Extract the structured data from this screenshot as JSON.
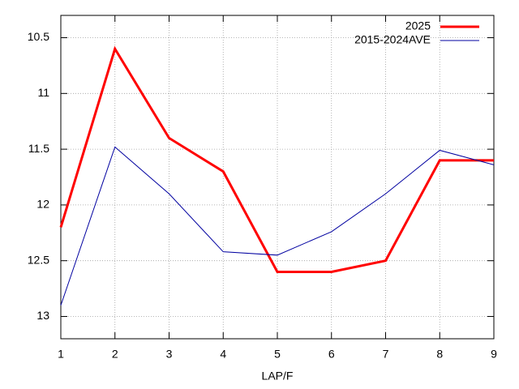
{
  "chart_data": {
    "type": "line",
    "xlabel": "LAP/F",
    "x": [
      1,
      2,
      3,
      4,
      5,
      6,
      7,
      8,
      9
    ],
    "series": [
      {
        "name": "2025",
        "color": "#ff0000",
        "width": 3,
        "values": [
          12.2,
          10.6,
          11.4,
          11.7,
          12.6,
          12.6,
          12.5,
          11.6,
          11.6
        ]
      },
      {
        "name": "2015-2024AVE",
        "color": "#0000a0",
        "width": 1,
        "values": [
          12.9,
          11.48,
          11.9,
          12.42,
          12.45,
          12.24,
          11.9,
          11.51,
          11.64
        ]
      }
    ],
    "xlim": [
      1,
      9
    ],
    "xticks": [
      1,
      2,
      3,
      4,
      5,
      6,
      7,
      8,
      9
    ],
    "ylim": [
      13.2,
      10.3
    ],
    "yticks": [
      10.5,
      11,
      11.5,
      12,
      12.5,
      13
    ],
    "grid": true,
    "legend": "top-right"
  }
}
